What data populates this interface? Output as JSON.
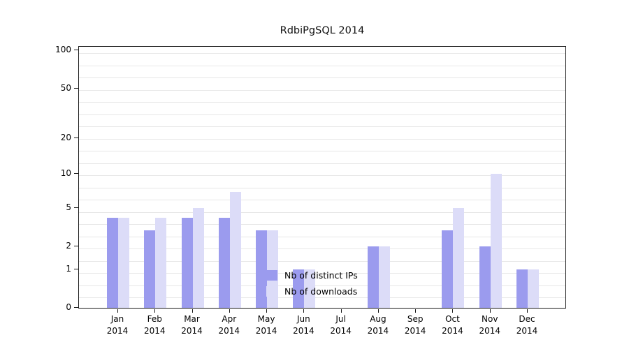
{
  "chart_data": {
    "type": "bar",
    "title": "RdbiPgSQL 2014",
    "year": "2014",
    "categories": [
      "Jan",
      "Feb",
      "Mar",
      "Apr",
      "May",
      "Jun",
      "Jul",
      "Aug",
      "Sep",
      "Oct",
      "Nov",
      "Dec"
    ],
    "series": [
      {
        "name": "Nb of distinct IPs",
        "color": "#9b9bee",
        "values": [
          4,
          3,
          4,
          4,
          3,
          1,
          0,
          2,
          0,
          3,
          2,
          1
        ]
      },
      {
        "name": "Nb of downloads",
        "color": "#dcdcf8",
        "values": [
          4,
          4,
          5,
          7,
          3,
          1,
          0,
          2,
          0,
          5,
          10,
          1
        ]
      }
    ],
    "yticks": [
      0,
      1,
      2,
      5,
      10,
      20,
      50,
      100
    ],
    "ylim": [
      0,
      100
    ],
    "scale": "log1p",
    "grid": true,
    "legend_position": "bottom-center-inside"
  }
}
